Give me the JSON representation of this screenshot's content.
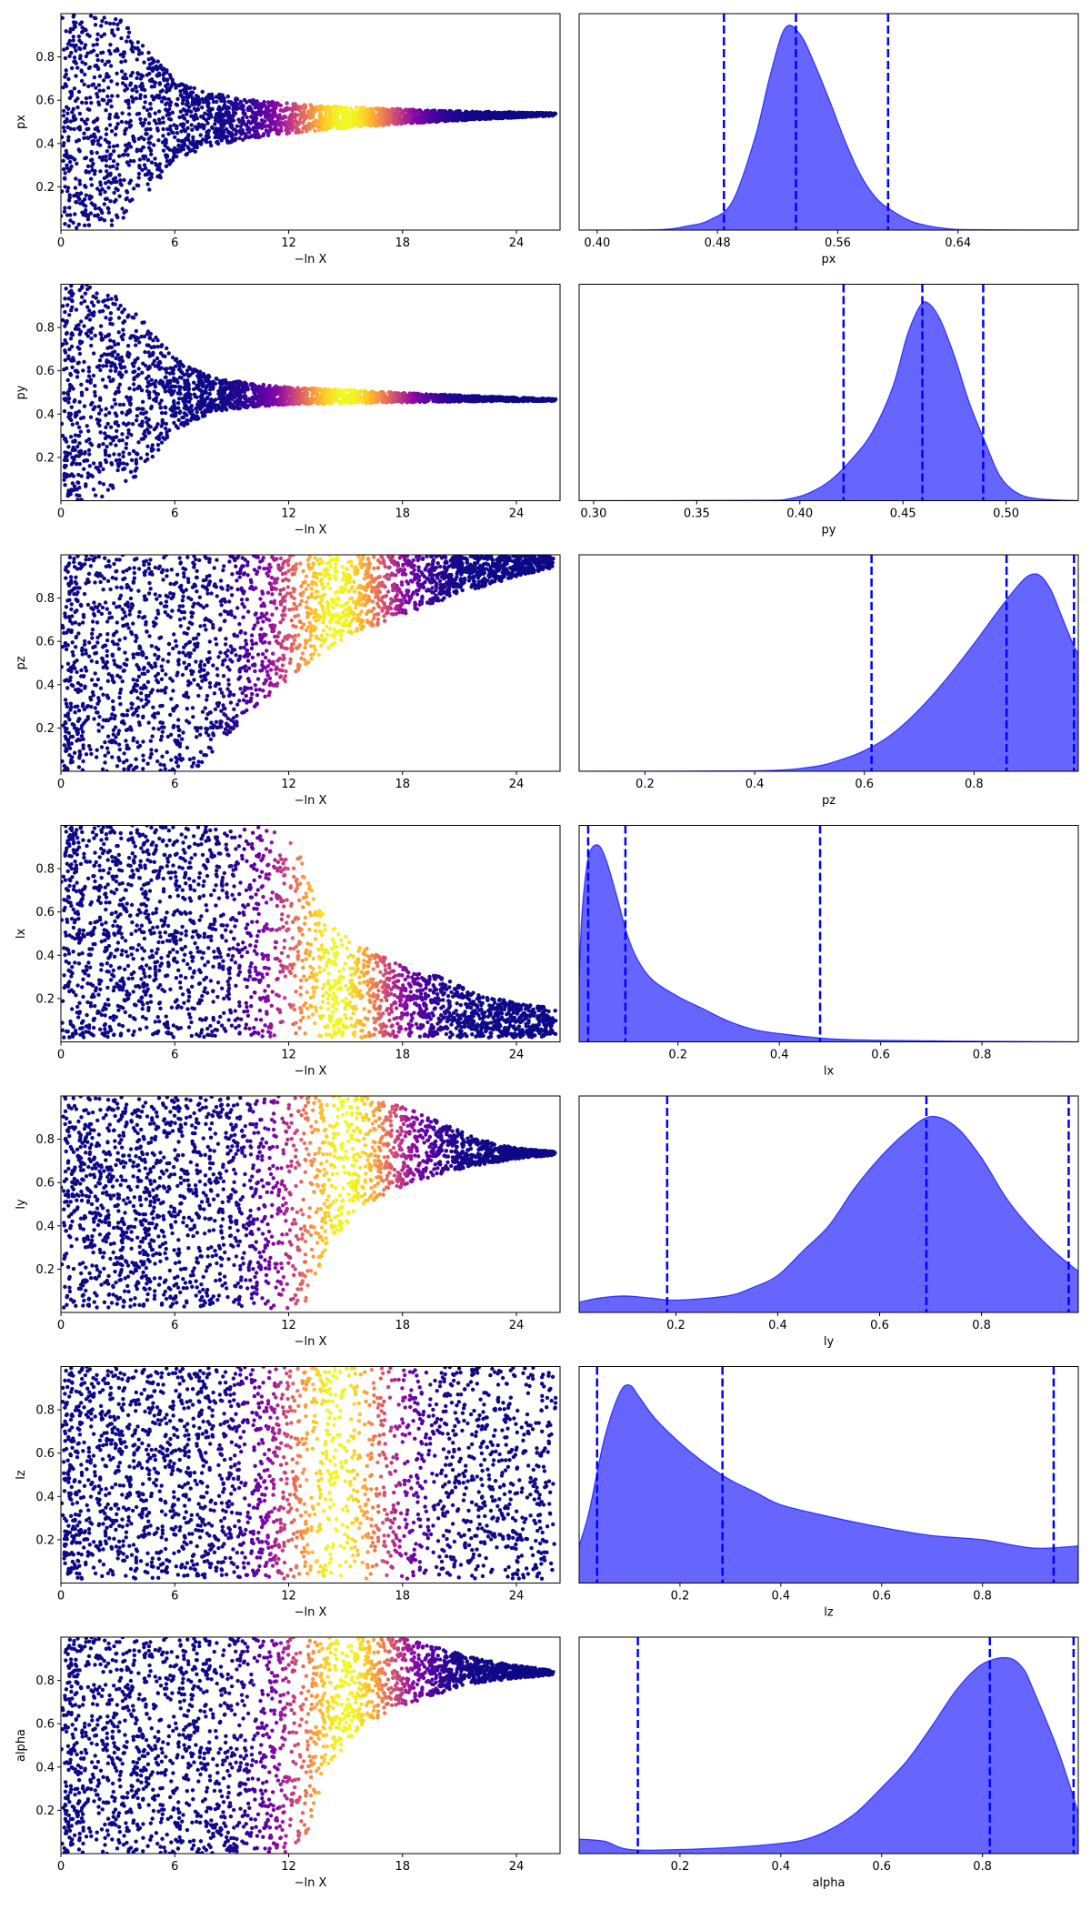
{
  "chart_data": [
    {
      "type": "scatter",
      "xlabel": "−ln X",
      "ylabel": "px",
      "xlim": [
        0,
        26.3
      ],
      "ylim": [
        0,
        1
      ],
      "xticks": [
        {
          "v": 0,
          "l": "0"
        },
        {
          "v": 6,
          "l": "6"
        },
        {
          "v": 12,
          "l": "12"
        },
        {
          "v": 18,
          "l": "18"
        },
        {
          "v": 24,
          "l": "24"
        }
      ],
      "yticks": [
        {
          "v": 0.2,
          "l": "0.2"
        },
        {
          "v": 0.4,
          "l": "0.4"
        },
        {
          "v": 0.6,
          "l": "0.6"
        },
        {
          "v": 0.8,
          "l": "0.8"
        }
      ],
      "colormap": "plasma",
      "color_peak_x": 15,
      "color_width": 3.2,
      "profile": {
        "center": [
          [
            0,
            0.5
          ],
          [
            26.3,
            0.535
          ]
        ],
        "half": [
          [
            0,
            0.5
          ],
          [
            3,
            0.48
          ],
          [
            5,
            0.3
          ],
          [
            6,
            0.18
          ],
          [
            8,
            0.12
          ],
          [
            10,
            0.09
          ],
          [
            12,
            0.07
          ],
          [
            14,
            0.055
          ],
          [
            17,
            0.04
          ],
          [
            20,
            0.025
          ],
          [
            23,
            0.015
          ],
          [
            26.3,
            0.005
          ]
        ]
      }
    },
    {
      "type": "area",
      "xlabel": "px",
      "ylabel": "",
      "xlim": [
        0.388,
        0.72
      ],
      "ylim": [
        0,
        1.05
      ],
      "xticks": [
        {
          "v": 0.4,
          "l": "0.40"
        },
        {
          "v": 0.48,
          "l": "0.48"
        },
        {
          "v": 0.56,
          "l": "0.56"
        },
        {
          "v": 0.64,
          "l": "0.64"
        }
      ],
      "fill": "#0000ff",
      "line_color": "#0000ff",
      "x": [
        0.388,
        0.44,
        0.46,
        0.475,
        0.49,
        0.505,
        0.515,
        0.525,
        0.535,
        0.545,
        0.555,
        0.565,
        0.575,
        0.585,
        0.595,
        0.61,
        0.63,
        0.65,
        0.72
      ],
      "density": [
        0,
        0.002,
        0.02,
        0.05,
        0.14,
        0.45,
        0.75,
        0.98,
        0.95,
        0.8,
        0.62,
        0.43,
        0.27,
        0.16,
        0.1,
        0.04,
        0.01,
        0.002,
        0
      ],
      "quantiles": [
        0.4843,
        0.5322,
        0.5935
      ]
    },
    {
      "type": "scatter",
      "xlabel": "−ln X",
      "ylabel": "py",
      "xlim": [
        0,
        26.3
      ],
      "ylim": [
        0,
        1
      ],
      "xticks": [
        {
          "v": 0,
          "l": "0"
        },
        {
          "v": 6,
          "l": "6"
        },
        {
          "v": 12,
          "l": "12"
        },
        {
          "v": 18,
          "l": "18"
        },
        {
          "v": 24,
          "l": "24"
        }
      ],
      "yticks": [
        {
          "v": 0.2,
          "l": "0.2"
        },
        {
          "v": 0.4,
          "l": "0.4"
        },
        {
          "v": 0.6,
          "l": "0.6"
        },
        {
          "v": 0.8,
          "l": "0.8"
        }
      ],
      "colormap": "plasma",
      "color_peak_x": 15,
      "color_width": 3.2,
      "profile": {
        "center": [
          [
            0,
            0.5
          ],
          [
            26.3,
            0.465
          ]
        ],
        "half": [
          [
            0,
            0.5
          ],
          [
            2,
            0.5
          ],
          [
            4,
            0.38
          ],
          [
            6,
            0.17
          ],
          [
            8,
            0.08
          ],
          [
            10,
            0.055
          ],
          [
            12,
            0.04
          ],
          [
            15,
            0.032
          ],
          [
            18,
            0.022
          ],
          [
            22,
            0.012
          ],
          [
            26.3,
            0.004
          ]
        ]
      }
    },
    {
      "type": "area",
      "xlabel": "py",
      "ylabel": "",
      "xlim": [
        0.293,
        0.535
      ],
      "ylim": [
        0,
        1.05
      ],
      "xticks": [
        {
          "v": 0.3,
          "l": "0.30"
        },
        {
          "v": 0.35,
          "l": "0.35"
        },
        {
          "v": 0.4,
          "l": "0.40"
        },
        {
          "v": 0.45,
          "l": "0.45"
        },
        {
          "v": 0.5,
          "l": "0.50"
        }
      ],
      "fill": "#0000ff",
      "line_color": "#0000ff",
      "x": [
        0.293,
        0.38,
        0.395,
        0.405,
        0.415,
        0.425,
        0.435,
        0.445,
        0.452,
        0.458,
        0.462,
        0.468,
        0.475,
        0.482,
        0.49,
        0.497,
        0.505,
        0.515,
        0.535
      ],
      "density": [
        0,
        0.002,
        0.01,
        0.04,
        0.1,
        0.2,
        0.33,
        0.55,
        0.8,
        0.94,
        0.96,
        0.88,
        0.7,
        0.48,
        0.28,
        0.12,
        0.04,
        0.01,
        0
      ],
      "quantiles": [
        0.4212,
        0.4594,
        0.4889
      ]
    },
    {
      "type": "scatter",
      "xlabel": "−ln X",
      "ylabel": "pz",
      "xlim": [
        0,
        26.3
      ],
      "ylim": [
        0,
        1
      ],
      "xticks": [
        {
          "v": 0,
          "l": "0"
        },
        {
          "v": 6,
          "l": "6"
        },
        {
          "v": 12,
          "l": "12"
        },
        {
          "v": 18,
          "l": "18"
        },
        {
          "v": 24,
          "l": "24"
        }
      ],
      "yticks": [
        {
          "v": 0.2,
          "l": "0.2"
        },
        {
          "v": 0.4,
          "l": "0.4"
        },
        {
          "v": 0.6,
          "l": "0.6"
        },
        {
          "v": 0.8,
          "l": "0.8"
        }
      ],
      "colormap": "plasma",
      "color_peak_x": 14.5,
      "color_width": 3.2,
      "profile": {
        "lower": [
          [
            0,
            0
          ],
          [
            7,
            0
          ],
          [
            9,
            0.18
          ],
          [
            11,
            0.35
          ],
          [
            13,
            0.5
          ],
          [
            15,
            0.62
          ],
          [
            18,
            0.72
          ],
          [
            21,
            0.82
          ],
          [
            24,
            0.9
          ],
          [
            26.3,
            0.95
          ]
        ],
        "upper": [
          [
            0,
            1
          ],
          [
            26.3,
            1
          ]
        ]
      }
    },
    {
      "type": "area",
      "xlabel": "pz",
      "ylabel": "",
      "xlim": [
        0.08,
        0.99
      ],
      "ylim": [
        0,
        1.05
      ],
      "xticks": [
        {
          "v": 0.2,
          "l": "0.2"
        },
        {
          "v": 0.4,
          "l": "0.4"
        },
        {
          "v": 0.6,
          "l": "0.6"
        },
        {
          "v": 0.8,
          "l": "0.8"
        }
      ],
      "fill": "#0000ff",
      "line_color": "#0000ff",
      "x": [
        0.08,
        0.4,
        0.5,
        0.55,
        0.6,
        0.65,
        0.7,
        0.75,
        0.8,
        0.85,
        0.88,
        0.9,
        0.92,
        0.94,
        0.96,
        0.98,
        0.99
      ],
      "density": [
        0,
        0.002,
        0.02,
        0.05,
        0.1,
        0.18,
        0.3,
        0.45,
        0.62,
        0.8,
        0.9,
        0.95,
        0.95,
        0.88,
        0.75,
        0.62,
        0.57
      ],
      "quantiles": [
        0.6131,
        0.8592,
        0.9822
      ]
    },
    {
      "type": "scatter",
      "xlabel": "−ln X",
      "ylabel": "lx",
      "xlim": [
        0,
        26.3
      ],
      "ylim": [
        0,
        1
      ],
      "xticks": [
        {
          "v": 0,
          "l": "0"
        },
        {
          "v": 6,
          "l": "6"
        },
        {
          "v": 12,
          "l": "12"
        },
        {
          "v": 18,
          "l": "18"
        },
        {
          "v": 24,
          "l": "24"
        }
      ],
      "yticks": [
        {
          "v": 0.2,
          "l": "0.2"
        },
        {
          "v": 0.4,
          "l": "0.4"
        },
        {
          "v": 0.6,
          "l": "0.6"
        },
        {
          "v": 0.8,
          "l": "0.8"
        }
      ],
      "colormap": "plasma",
      "color_peak_x": 14.5,
      "color_width": 3.2,
      "profile": {
        "lower": [
          [
            0,
            0.02
          ],
          [
            26.3,
            0.02
          ]
        ],
        "upper": [
          [
            0,
            1
          ],
          [
            10,
            1
          ],
          [
            12,
            0.97
          ],
          [
            13,
            0.8
          ],
          [
            14,
            0.55
          ],
          [
            16,
            0.45
          ],
          [
            18,
            0.35
          ],
          [
            20,
            0.3
          ],
          [
            22,
            0.22
          ],
          [
            24,
            0.18
          ],
          [
            26.3,
            0.15
          ]
        ]
      }
    },
    {
      "type": "area",
      "xlabel": "lx",
      "ylabel": "",
      "xlim": [
        0.005,
        0.99
      ],
      "ylim": [
        0,
        1.05
      ],
      "xticks": [
        {
          "v": 0.2,
          "l": "0.2"
        },
        {
          "v": 0.4,
          "l": "0.4"
        },
        {
          "v": 0.6,
          "l": "0.6"
        },
        {
          "v": 0.8,
          "l": "0.8"
        }
      ],
      "fill": "#0000ff",
      "line_color": "#0000ff",
      "x": [
        0.005,
        0.01,
        0.02,
        0.03,
        0.045,
        0.06,
        0.08,
        0.1,
        0.12,
        0.15,
        0.2,
        0.25,
        0.3,
        0.35,
        0.4,
        0.5,
        0.6,
        0.7,
        0.8,
        0.99
      ],
      "density": [
        0.3,
        0.6,
        0.85,
        0.94,
        0.95,
        0.87,
        0.7,
        0.52,
        0.4,
        0.3,
        0.22,
        0.16,
        0.1,
        0.06,
        0.04,
        0.015,
        0.008,
        0.005,
        0.003,
        0
      ],
      "quantiles": [
        0.0228,
        0.0963,
        0.4805
      ]
    },
    {
      "type": "scatter",
      "xlabel": "−ln X",
      "ylabel": "ly",
      "xlim": [
        0,
        26.3
      ],
      "ylim": [
        0,
        1
      ],
      "xticks": [
        {
          "v": 0,
          "l": "0"
        },
        {
          "v": 6,
          "l": "6"
        },
        {
          "v": 12,
          "l": "12"
        },
        {
          "v": 18,
          "l": "18"
        },
        {
          "v": 24,
          "l": "24"
        }
      ],
      "yticks": [
        {
          "v": 0.2,
          "l": "0.2"
        },
        {
          "v": 0.4,
          "l": "0.4"
        },
        {
          "v": 0.6,
          "l": "0.6"
        },
        {
          "v": 0.8,
          "l": "0.8"
        }
      ],
      "colormap": "plasma",
      "color_peak_x": 15,
      "color_width": 3.2,
      "profile": {
        "lower": [
          [
            0,
            0.02
          ],
          [
            12,
            0.02
          ],
          [
            13,
            0.05
          ],
          [
            14,
            0.3
          ],
          [
            16,
            0.5
          ],
          [
            18,
            0.58
          ],
          [
            20,
            0.64
          ],
          [
            22,
            0.68
          ],
          [
            24,
            0.71
          ],
          [
            26.3,
            0.73
          ]
        ],
        "upper": [
          [
            0,
            1
          ],
          [
            16,
            1
          ],
          [
            18,
            0.95
          ],
          [
            20,
            0.88
          ],
          [
            22,
            0.8
          ],
          [
            24,
            0.76
          ],
          [
            26.3,
            0.74
          ]
        ]
      }
    },
    {
      "type": "area",
      "xlabel": "ly",
      "ylabel": "",
      "xlim": [
        0.01,
        0.99
      ],
      "ylim": [
        0,
        1.05
      ],
      "xticks": [
        {
          "v": 0.2,
          "l": "0.2"
        },
        {
          "v": 0.4,
          "l": "0.4"
        },
        {
          "v": 0.6,
          "l": "0.6"
        },
        {
          "v": 0.8,
          "l": "0.8"
        }
      ],
      "fill": "#0000ff",
      "line_color": "#0000ff",
      "x": [
        0.01,
        0.05,
        0.1,
        0.15,
        0.2,
        0.3,
        0.35,
        0.4,
        0.45,
        0.5,
        0.55,
        0.6,
        0.65,
        0.7,
        0.75,
        0.8,
        0.85,
        0.9,
        0.95,
        0.99
      ],
      "density": [
        0.05,
        0.07,
        0.08,
        0.07,
        0.06,
        0.08,
        0.12,
        0.18,
        0.3,
        0.42,
        0.6,
        0.75,
        0.87,
        0.95,
        0.9,
        0.75,
        0.55,
        0.4,
        0.28,
        0.2
      ],
      "quantiles": [
        0.1828,
        0.6918,
        0.9712
      ]
    },
    {
      "type": "scatter",
      "xlabel": "−ln X",
      "ylabel": "lz",
      "xlim": [
        0,
        26.3
      ],
      "ylim": [
        0,
        1
      ],
      "xticks": [
        {
          "v": 0,
          "l": "0"
        },
        {
          "v": 6,
          "l": "6"
        },
        {
          "v": 12,
          "l": "12"
        },
        {
          "v": 18,
          "l": "18"
        },
        {
          "v": 24,
          "l": "24"
        }
      ],
      "yticks": [
        {
          "v": 0.2,
          "l": "0.2"
        },
        {
          "v": 0.4,
          "l": "0.4"
        },
        {
          "v": 0.6,
          "l": "0.6"
        },
        {
          "v": 0.8,
          "l": "0.8"
        }
      ],
      "colormap": "plasma",
      "color_peak_x": 14.5,
      "color_width": 3.2,
      "profile": {
        "lower": [
          [
            0,
            0.02
          ],
          [
            26.3,
            0.02
          ]
        ],
        "upper": [
          [
            0,
            1
          ],
          [
            26.3,
            1
          ]
        ]
      }
    },
    {
      "type": "area",
      "xlabel": "lz",
      "ylabel": "",
      "xlim": [
        0.0,
        0.99
      ],
      "ylim": [
        0,
        1.05
      ],
      "xticks": [
        {
          "v": 0.2,
          "l": "0.2"
        },
        {
          "v": 0.4,
          "l": "0.4"
        },
        {
          "v": 0.6,
          "l": "0.6"
        },
        {
          "v": 0.8,
          "l": "0.8"
        }
      ],
      "fill": "#0000ff",
      "line_color": "#0000ff",
      "x": [
        0.0,
        0.02,
        0.05,
        0.08,
        0.1,
        0.12,
        0.15,
        0.2,
        0.25,
        0.3,
        0.35,
        0.4,
        0.5,
        0.6,
        0.7,
        0.8,
        0.9,
        0.99
      ],
      "density": [
        0.18,
        0.35,
        0.7,
        0.92,
        0.96,
        0.9,
        0.8,
        0.68,
        0.58,
        0.5,
        0.44,
        0.38,
        0.32,
        0.27,
        0.23,
        0.21,
        0.17,
        0.18
      ],
      "quantiles": [
        0.0356,
        0.2843,
        0.9412
      ]
    },
    {
      "type": "scatter",
      "xlabel": "−ln X",
      "ylabel": "alpha",
      "xlim": [
        0,
        26.3
      ],
      "ylim": [
        0,
        1
      ],
      "xticks": [
        {
          "v": 0,
          "l": "0"
        },
        {
          "v": 6,
          "l": "6"
        },
        {
          "v": 12,
          "l": "12"
        },
        {
          "v": 18,
          "l": "18"
        },
        {
          "v": 24,
          "l": "24"
        }
      ],
      "yticks": [
        {
          "v": 0.2,
          "l": "0.2"
        },
        {
          "v": 0.4,
          "l": "0.4"
        },
        {
          "v": 0.6,
          "l": "0.6"
        },
        {
          "v": 0.8,
          "l": "0.8"
        }
      ],
      "colormap": "plasma",
      "color_peak_x": 15,
      "color_width": 3.2,
      "profile": {
        "lower": [
          [
            0,
            0
          ],
          [
            12,
            0
          ],
          [
            13,
            0.1
          ],
          [
            14,
            0.4
          ],
          [
            16,
            0.6
          ],
          [
            18,
            0.68
          ],
          [
            20,
            0.74
          ],
          [
            22,
            0.79
          ],
          [
            24,
            0.81
          ],
          [
            26.3,
            0.83
          ]
        ],
        "upper": [
          [
            0,
            1
          ],
          [
            18,
            1
          ],
          [
            20,
            0.95
          ],
          [
            22,
            0.9
          ],
          [
            24,
            0.87
          ],
          [
            26.3,
            0.84
          ]
        ]
      }
    },
    {
      "type": "area",
      "xlabel": "alpha",
      "ylabel": "",
      "xlim": [
        0.0,
        0.99
      ],
      "ylim": [
        0,
        1.05
      ],
      "xticks": [
        {
          "v": 0.2,
          "l": "0.2"
        },
        {
          "v": 0.4,
          "l": "0.4"
        },
        {
          "v": 0.6,
          "l": "0.6"
        },
        {
          "v": 0.8,
          "l": "0.8"
        }
      ],
      "fill": "#0000ff",
      "line_color": "#0000ff",
      "x": [
        0.0,
        0.05,
        0.1,
        0.2,
        0.3,
        0.4,
        0.45,
        0.5,
        0.55,
        0.6,
        0.65,
        0.7,
        0.75,
        0.8,
        0.85,
        0.88,
        0.9,
        0.95,
        0.99
      ],
      "density": [
        0.07,
        0.06,
        0.02,
        0.02,
        0.03,
        0.05,
        0.07,
        0.12,
        0.2,
        0.32,
        0.45,
        0.62,
        0.8,
        0.92,
        0.95,
        0.9,
        0.8,
        0.5,
        0.2
      ],
      "quantiles": [
        0.1165,
        0.8146,
        0.9807
      ]
    }
  ]
}
